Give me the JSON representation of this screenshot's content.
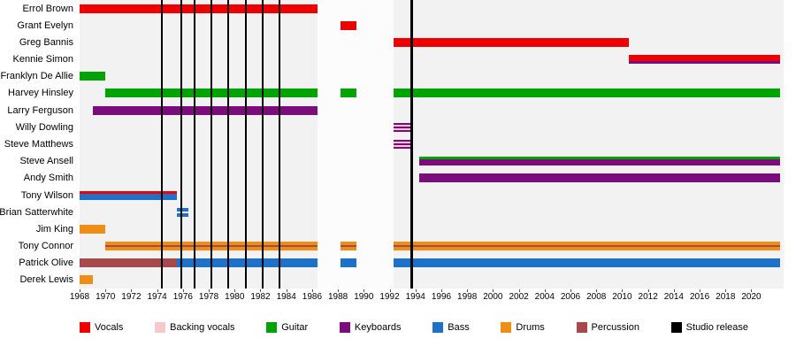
{
  "chart_data": {
    "type": "timeline",
    "title": "",
    "x_axis": {
      "min": 1968,
      "max": 2022.5,
      "tick_interval": 2,
      "ticks": [
        1968,
        1970,
        1972,
        1974,
        1976,
        1978,
        1980,
        1982,
        1984,
        1986,
        1988,
        1990,
        1992,
        1994,
        1996,
        1998,
        2000,
        2002,
        2004,
        2006,
        2008,
        2010,
        2012,
        2014,
        2016,
        2018,
        2020
      ]
    },
    "legend": [
      {
        "key": "vocals",
        "label": "Vocals",
        "color": "#ee0000"
      },
      {
        "key": "backing_vocals",
        "label": "Backing vocals",
        "color": "#f9c8cc"
      },
      {
        "key": "guitar",
        "label": "Guitar",
        "color": "#00a300"
      },
      {
        "key": "keyboards",
        "label": "Keyboards",
        "color": "#7b0c7b"
      },
      {
        "key": "bass",
        "label": "Bass",
        "color": "#1d71c8"
      },
      {
        "key": "drums",
        "label": "Drums",
        "color": "#ef8e17"
      },
      {
        "key": "percussion",
        "label": "Percussion",
        "color": "#a5494d"
      },
      {
        "key": "studio_release",
        "label": "Studio release",
        "color": "#000000"
      }
    ],
    "inactive_periods": [
      {
        "start": 1986.4,
        "end": 1992.3
      }
    ],
    "studio_release_lines": [
      {
        "year": 1974.4,
        "width": 2
      },
      {
        "year": 1975.9,
        "width": 2
      },
      {
        "year": 1976.9,
        "width": 2
      },
      {
        "year": 1978.2,
        "width": 2
      },
      {
        "year": 1979.5,
        "width": 2
      },
      {
        "year": 1980.9,
        "width": 2
      },
      {
        "year": 1982.2,
        "width": 2
      },
      {
        "year": 1983.5,
        "width": 2
      },
      {
        "year": 1993.7,
        "width": 3
      }
    ],
    "members": [
      {
        "name": "Errol Brown",
        "segments": [
          {
            "start": 1968,
            "end": 1986.4,
            "layers": [
              {
                "role": "vocals",
                "frac": 1
              }
            ]
          }
        ]
      },
      {
        "name": "Grant Evelyn",
        "segments": [
          {
            "start": 1988.2,
            "end": 1989.4,
            "layers": [
              {
                "role": "vocals",
                "frac": 1
              }
            ]
          }
        ]
      },
      {
        "name": "Greg Bannis",
        "segments": [
          {
            "start": 1992.3,
            "end": 2010.5,
            "layers": [
              {
                "role": "vocals",
                "frac": 1
              }
            ]
          }
        ]
      },
      {
        "name": "Kennie Simon",
        "segments": [
          {
            "start": 2010.5,
            "end": 2022.2,
            "layers": [
              {
                "role": "vocals",
                "frac": 0.68
              },
              {
                "role": "keyboards",
                "frac": 0.32
              }
            ]
          }
        ]
      },
      {
        "name": "Franklyn De Allie",
        "segments": [
          {
            "start": 1968,
            "end": 1970,
            "layers": [
              {
                "role": "guitar",
                "frac": 1
              }
            ]
          }
        ]
      },
      {
        "name": "Harvey Hinsley",
        "segments": [
          {
            "start": 1970,
            "end": 1986.4,
            "layers": [
              {
                "role": "guitar",
                "frac": 1
              }
            ]
          },
          {
            "start": 1988.2,
            "end": 1989.4,
            "layers": [
              {
                "role": "guitar",
                "frac": 1
              }
            ]
          },
          {
            "start": 1992.3,
            "end": 2022.2,
            "layers": [
              {
                "role": "guitar",
                "frac": 1
              }
            ]
          }
        ]
      },
      {
        "name": "Larry Ferguson",
        "segments": [
          {
            "start": 1969,
            "end": 1986.4,
            "layers": [
              {
                "role": "keyboards",
                "frac": 1
              }
            ]
          }
        ]
      },
      {
        "name": "Willy Dowling",
        "segments": [
          {
            "start": 1992.3,
            "end": 1993.6,
            "layers": [
              {
                "role": "keyboards",
                "frac": 0.2
              },
              {
                "role": "backing_vocals",
                "frac": 0.2
              },
              {
                "role": "keyboards",
                "frac": 0.2
              },
              {
                "role": "backing_vocals",
                "frac": 0.2
              },
              {
                "role": "keyboards",
                "frac": 0.2
              }
            ]
          }
        ]
      },
      {
        "name": "Steve Matthews",
        "segments": [
          {
            "start": 1992.3,
            "end": 1993.6,
            "layers": [
              {
                "role": "keyboards",
                "frac": 0.2
              },
              {
                "role": "backing_vocals",
                "frac": 0.2
              },
              {
                "role": "keyboards",
                "frac": 0.2
              },
              {
                "role": "backing_vocals",
                "frac": 0.2
              },
              {
                "role": "keyboards",
                "frac": 0.2
              }
            ]
          }
        ]
      },
      {
        "name": "Steve Ansell",
        "segments": [
          {
            "start": 1994.3,
            "end": 2022.2,
            "layers": [
              {
                "role": "guitar",
                "frac": 0.3
              },
              {
                "role": "keyboards",
                "frac": 0.7
              }
            ]
          }
        ]
      },
      {
        "name": "Andy Smith",
        "segments": [
          {
            "start": 1994.3,
            "end": 2022.2,
            "layers": [
              {
                "role": "keyboards",
                "frac": 1
              }
            ]
          }
        ]
      },
      {
        "name": "Tony Wilson",
        "segments": [
          {
            "start": 1968,
            "end": 1975.5,
            "layers": [
              {
                "role": "vocals",
                "frac": 0.3
              },
              {
                "role": "bass",
                "frac": 0.7
              }
            ]
          }
        ]
      },
      {
        "name": "Brian Satterwhite",
        "segments": [
          {
            "start": 1975.5,
            "end": 1976.4,
            "layers": [
              {
                "role": "bass",
                "frac": 0.38
              },
              {
                "role": "gap",
                "frac": 0.24
              },
              {
                "role": "bass",
                "frac": 0.38
              }
            ]
          }
        ]
      },
      {
        "name": "Jim King",
        "segments": [
          {
            "start": 1968,
            "end": 1970,
            "layers": [
              {
                "role": "drums",
                "frac": 1
              }
            ]
          }
        ]
      },
      {
        "name": "Tony Connor",
        "segments": [
          {
            "start": 1970,
            "end": 1986.4,
            "layers": [
              {
                "role": "drums",
                "frac": 0.4
              },
              {
                "role": "percussion",
                "frac": 0.2
              },
              {
                "role": "drums",
                "frac": 0.4
              }
            ]
          },
          {
            "start": 1988.2,
            "end": 1989.4,
            "layers": [
              {
                "role": "drums",
                "frac": 0.4
              },
              {
                "role": "percussion",
                "frac": 0.2
              },
              {
                "role": "drums",
                "frac": 0.4
              }
            ]
          },
          {
            "start": 1992.3,
            "end": 2022.2,
            "layers": [
              {
                "role": "drums",
                "frac": 0.4
              },
              {
                "role": "percussion",
                "frac": 0.2
              },
              {
                "role": "drums",
                "frac": 0.4
              }
            ]
          }
        ]
      },
      {
        "name": "Patrick Olive",
        "segments": [
          {
            "start": 1968,
            "end": 1975.5,
            "layers": [
              {
                "role": "percussion",
                "frac": 1
              }
            ]
          },
          {
            "start": 1975.5,
            "end": 1986.4,
            "layers": [
              {
                "role": "bass",
                "frac": 1
              }
            ]
          },
          {
            "start": 1988.2,
            "end": 1989.4,
            "layers": [
              {
                "role": "bass",
                "frac": 1
              }
            ]
          },
          {
            "start": 1992.3,
            "end": 2022.2,
            "layers": [
              {
                "role": "bass",
                "frac": 1
              }
            ]
          }
        ]
      },
      {
        "name": "Derek Lewis",
        "segments": [
          {
            "start": 1968,
            "end": 1969,
            "layers": [
              {
                "role": "drums",
                "frac": 1
              }
            ]
          }
        ]
      }
    ]
  }
}
